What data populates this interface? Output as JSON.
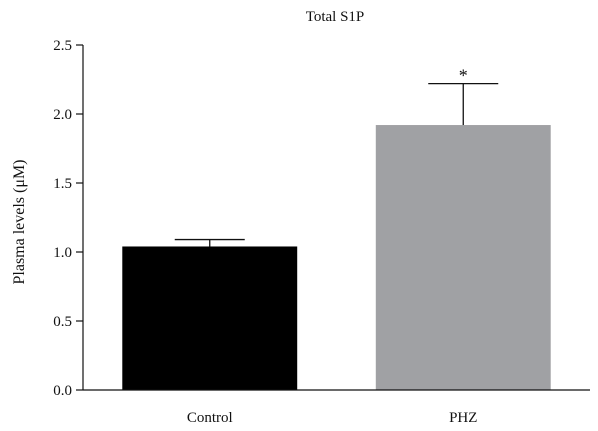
{
  "chart_data": {
    "type": "bar",
    "title": "Total S1P",
    "xlabel": "",
    "ylabel": "Plasma levels (μM)",
    "categories": [
      "Control",
      "PHZ"
    ],
    "values": [
      1.04,
      1.92
    ],
    "errors": [
      0.05,
      0.3
    ],
    "colors": [
      "#000000",
      "#a0a1a4"
    ],
    "significance": [
      "",
      "*"
    ],
    "ylim": [
      0,
      2.5
    ],
    "yticks": [
      "0.0",
      "0.5",
      "1.0",
      "1.5",
      "2.0",
      "2.5"
    ],
    "grid": false,
    "legend": "none"
  }
}
